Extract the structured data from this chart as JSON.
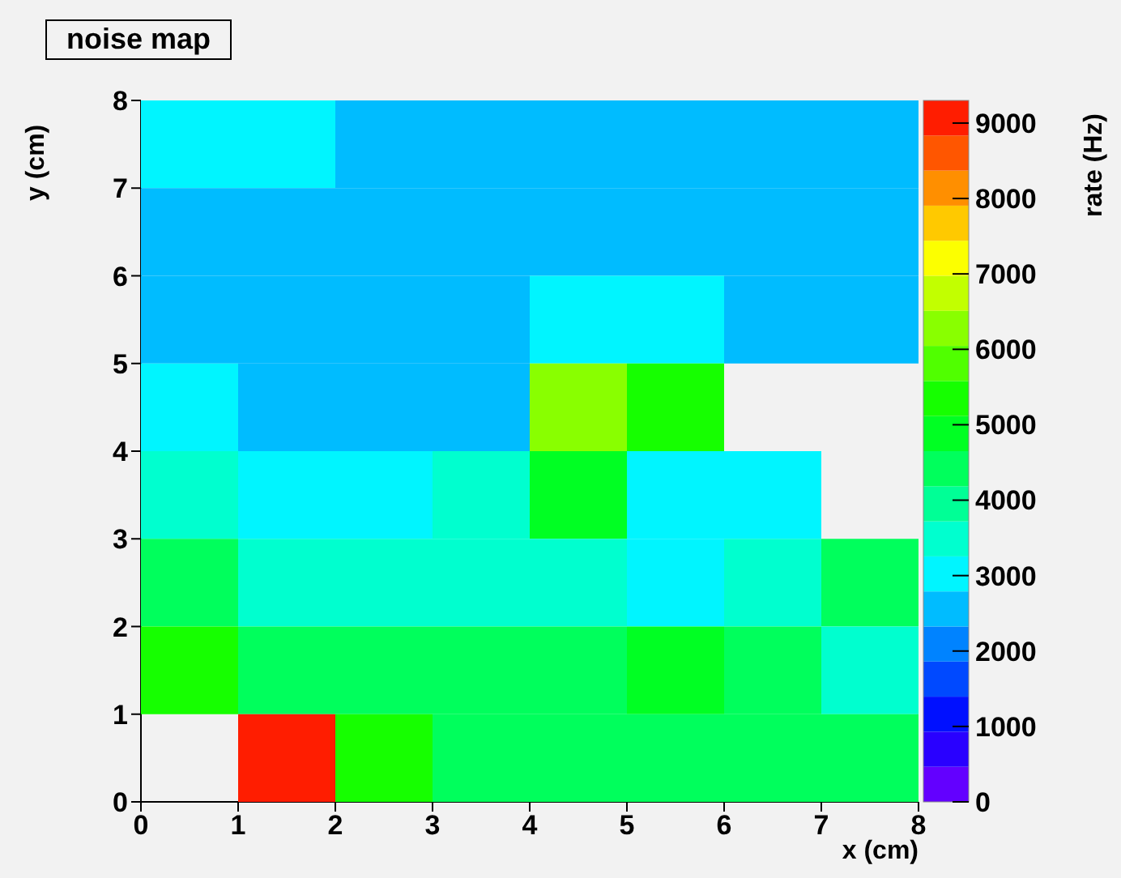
{
  "chart_data": {
    "type": "heatmap",
    "title": "noise map",
    "xlabel": "x (cm)",
    "ylabel": "y (cm)",
    "clabel": "rate (Hz)",
    "xlim": [
      0,
      8
    ],
    "ylim": [
      0,
      8
    ],
    "xticks": [
      0,
      1,
      2,
      3,
      4,
      5,
      6,
      7,
      8
    ],
    "yticks": [
      0,
      1,
      2,
      3,
      4,
      5,
      6,
      7,
      8
    ],
    "clim": [
      0,
      9300
    ],
    "cticks": [
      0,
      1000,
      2000,
      3000,
      4000,
      5000,
      6000,
      7000,
      8000,
      9000
    ],
    "cells": [
      [
        3000,
        3000,
        2550,
        2550,
        2550,
        2550,
        2550,
        2550
      ],
      [
        2550,
        2550,
        2550,
        2550,
        2550,
        2550,
        2550,
        2550
      ],
      [
        2550,
        2550,
        2550,
        2550,
        3000,
        3000,
        2550,
        2550
      ],
      [
        3000,
        2550,
        2550,
        2550,
        6400,
        5450,
        null,
        null
      ],
      [
        3500,
        3000,
        3000,
        3500,
        5100,
        3000,
        3000,
        null
      ],
      [
        4300,
        3500,
        3500,
        3500,
        3500,
        3000,
        3500,
        4300
      ],
      [
        5450,
        4400,
        4400,
        4400,
        4400,
        5100,
        4400,
        3500
      ],
      [
        null,
        9300,
        5450,
        4400,
        4600,
        4600,
        4400,
        4400
      ]
    ]
  }
}
